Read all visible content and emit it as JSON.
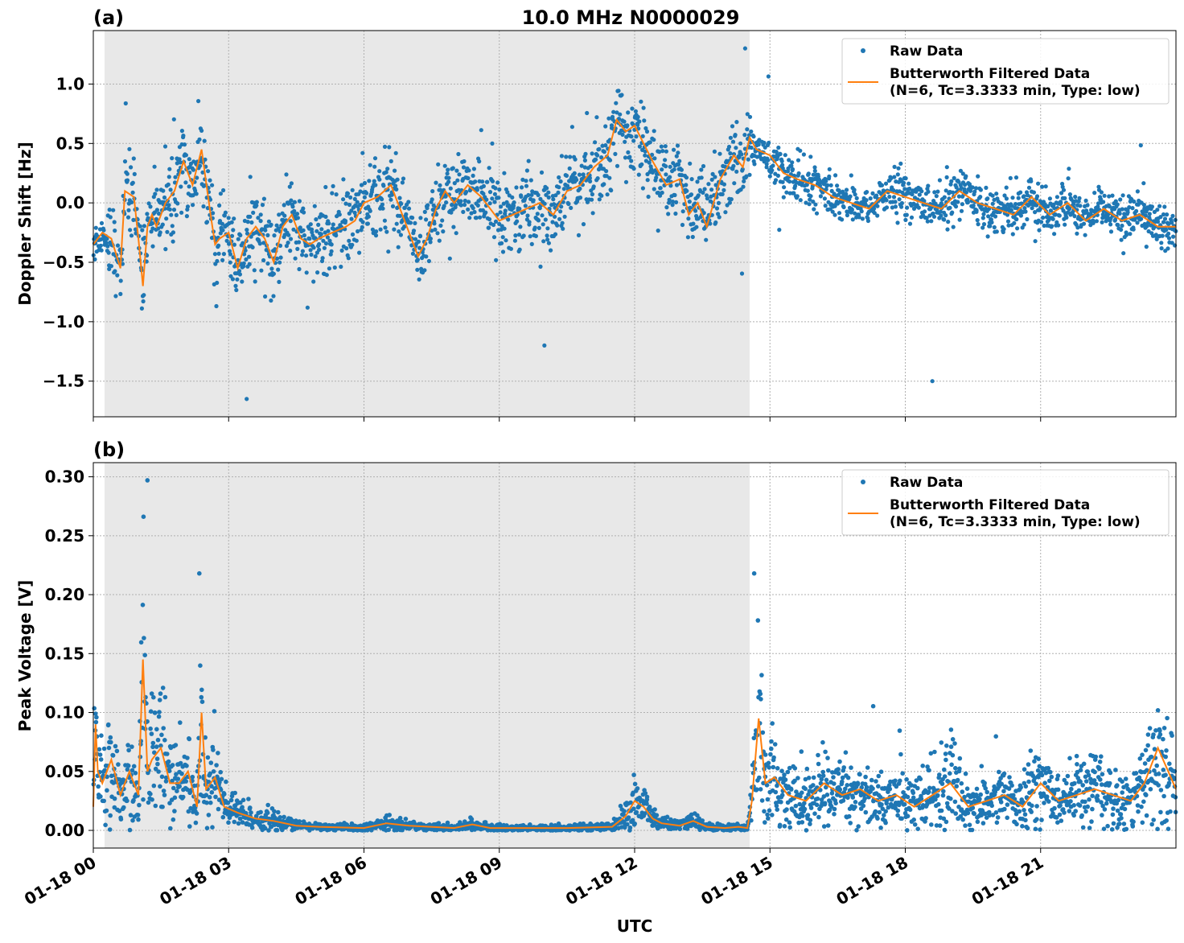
{
  "figure": {
    "title": "10.0 MHz N0000029",
    "xlabel": "UTC",
    "xticks": [
      "01-18 00",
      "01-18 03",
      "01-18 06",
      "01-18 09",
      "01-18 12",
      "01-18 15",
      "01-18 18",
      "01-18 21"
    ],
    "colors": {
      "raw": "#1f77b4",
      "filtered": "#ff7f0e",
      "night_shade": "#e8e8e8"
    }
  },
  "chart_data": [
    {
      "type": "scatter",
      "panel_label": "(a)",
      "ylabel": "Doppler Shift [Hz]",
      "xlim_hours": [
        0,
        24
      ],
      "ylim": [
        -1.8,
        1.45
      ],
      "yticks": [
        1.0,
        0.5,
        0.0,
        -0.5,
        -1.0,
        -1.5
      ],
      "ytick_labels": [
        "1.0",
        "0.5",
        "0.0",
        "−0.5",
        "−1.0",
        "−1.5"
      ],
      "grid": true,
      "legend_position": "top-right",
      "shaded_interval_hours": [
        0.25,
        14.55
      ],
      "series": [
        {
          "name": "Raw Data",
          "style": "points",
          "color": "#1f77b4"
        },
        {
          "name": "Butterworth Filtered Data\n(N=6, Tc=3.3333 min, Type: low)",
          "style": "line",
          "color": "#ff7f0e"
        }
      ],
      "filtered_curve": {
        "x": [
          0.0,
          0.2,
          0.4,
          0.6,
          0.7,
          0.9,
          1.0,
          1.1,
          1.2,
          1.3,
          1.4,
          1.6,
          1.8,
          2.0,
          2.2,
          2.4,
          2.6,
          2.7,
          2.8,
          3.0,
          3.2,
          3.4,
          3.6,
          3.8,
          4.0,
          4.2,
          4.4,
          4.6,
          4.8,
          5.0,
          5.3,
          5.6,
          5.8,
          6.0,
          6.3,
          6.6,
          6.9,
          7.2,
          7.4,
          7.6,
          7.8,
          8.0,
          8.3,
          8.6,
          9.0,
          9.3,
          9.6,
          9.9,
          10.2,
          10.5,
          10.8,
          11.1,
          11.4,
          11.6,
          11.8,
          12.0,
          12.2,
          12.4,
          12.7,
          13.0,
          13.2,
          13.4,
          13.6,
          13.9,
          14.2,
          14.4,
          14.55,
          14.7,
          15.0,
          15.3,
          15.6,
          16.0,
          16.4,
          16.8,
          17.2,
          17.6,
          18.0,
          18.4,
          18.8,
          19.2,
          19.6,
          20.0,
          20.4,
          20.8,
          21.2,
          21.6,
          22.0,
          22.4,
          22.8,
          23.2,
          23.6,
          24.0
        ],
        "y": [
          -0.35,
          -0.25,
          -0.3,
          -0.55,
          0.1,
          0.05,
          -0.3,
          -0.7,
          -0.2,
          -0.1,
          -0.2,
          0.0,
          0.1,
          0.35,
          0.15,
          0.45,
          -0.1,
          -0.35,
          -0.3,
          -0.25,
          -0.55,
          -0.3,
          -0.2,
          -0.3,
          -0.5,
          -0.2,
          -0.1,
          -0.3,
          -0.35,
          -0.3,
          -0.25,
          -0.2,
          -0.15,
          0.0,
          0.05,
          0.15,
          -0.15,
          -0.45,
          -0.3,
          -0.05,
          0.1,
          0.0,
          0.15,
          0.05,
          -0.15,
          -0.1,
          -0.05,
          0.0,
          -0.1,
          0.1,
          0.15,
          0.3,
          0.4,
          0.7,
          0.6,
          0.65,
          0.5,
          0.35,
          0.15,
          0.2,
          -0.1,
          0.0,
          -0.2,
          0.2,
          0.4,
          0.3,
          0.55,
          0.45,
          0.4,
          0.25,
          0.2,
          0.15,
          0.05,
          0.0,
          -0.05,
          0.1,
          0.05,
          0.0,
          -0.05,
          0.1,
          0.0,
          -0.05,
          -0.1,
          0.05,
          -0.1,
          0.0,
          -0.15,
          -0.05,
          -0.15,
          -0.1,
          -0.2,
          -0.2
        ]
      },
      "notable_raw_points": [
        {
          "x": 3.4,
          "y": -1.65
        },
        {
          "x": 18.6,
          "y": -1.5
        },
        {
          "x": 10.0,
          "y": -1.2
        },
        {
          "x": 14.45,
          "y": 1.3
        }
      ]
    },
    {
      "type": "scatter",
      "panel_label": "(b)",
      "ylabel": "Peak Voltage [V]",
      "xlim_hours": [
        0,
        24
      ],
      "ylim": [
        -0.015,
        0.312
      ],
      "yticks": [
        0.3,
        0.25,
        0.2,
        0.15,
        0.1,
        0.05,
        0.0
      ],
      "ytick_labels": [
        "0.30",
        "0.25",
        "0.20",
        "0.15",
        "0.10",
        "0.05",
        "0.00"
      ],
      "grid": true,
      "legend_position": "top-right",
      "shaded_interval_hours": [
        0.25,
        14.55
      ],
      "series": [
        {
          "name": "Raw Data",
          "style": "points",
          "color": "#1f77b4"
        },
        {
          "name": "Butterworth Filtered Data\n(N=6, Tc=3.3333 min, Type: low)",
          "style": "line",
          "color": "#ff7f0e"
        }
      ],
      "filtered_curve": {
        "x": [
          0.0,
          0.05,
          0.1,
          0.2,
          0.4,
          0.6,
          0.8,
          1.0,
          1.1,
          1.2,
          1.3,
          1.5,
          1.7,
          1.9,
          2.1,
          2.3,
          2.4,
          2.5,
          2.7,
          2.9,
          3.2,
          3.6,
          4.0,
          4.5,
          5.0,
          6.0,
          6.5,
          7.0,
          8.0,
          8.4,
          8.8,
          9.5,
          10.5,
          11.5,
          11.8,
          12.0,
          12.2,
          12.4,
          12.6,
          13.0,
          13.3,
          13.6,
          14.0,
          14.3,
          14.5,
          14.6,
          14.75,
          14.9,
          15.1,
          15.4,
          15.8,
          16.2,
          16.6,
          17.0,
          17.4,
          17.8,
          18.2,
          18.6,
          19.0,
          19.4,
          19.8,
          20.2,
          20.6,
          21.0,
          21.4,
          21.8,
          22.2,
          22.6,
          23.0,
          23.3,
          23.6,
          24.0
        ],
        "y": [
          0.02,
          0.09,
          0.05,
          0.04,
          0.06,
          0.03,
          0.05,
          0.03,
          0.145,
          0.05,
          0.06,
          0.07,
          0.04,
          0.04,
          0.05,
          0.02,
          0.1,
          0.035,
          0.045,
          0.02,
          0.015,
          0.01,
          0.008,
          0.004,
          0.003,
          0.002,
          0.006,
          0.004,
          0.002,
          0.005,
          0.002,
          0.002,
          0.002,
          0.003,
          0.012,
          0.025,
          0.02,
          0.01,
          0.006,
          0.004,
          0.008,
          0.003,
          0.002,
          0.003,
          0.002,
          0.025,
          0.095,
          0.04,
          0.045,
          0.03,
          0.025,
          0.04,
          0.03,
          0.035,
          0.025,
          0.03,
          0.02,
          0.03,
          0.04,
          0.02,
          0.025,
          0.03,
          0.02,
          0.04,
          0.025,
          0.03,
          0.035,
          0.03,
          0.025,
          0.04,
          0.07,
          0.035
        ]
      },
      "notable_raw_points": [
        {
          "x": 1.2,
          "y": 0.297
        },
        {
          "x": 2.35,
          "y": 0.218
        },
        {
          "x": 14.65,
          "y": 0.218
        }
      ]
    }
  ]
}
